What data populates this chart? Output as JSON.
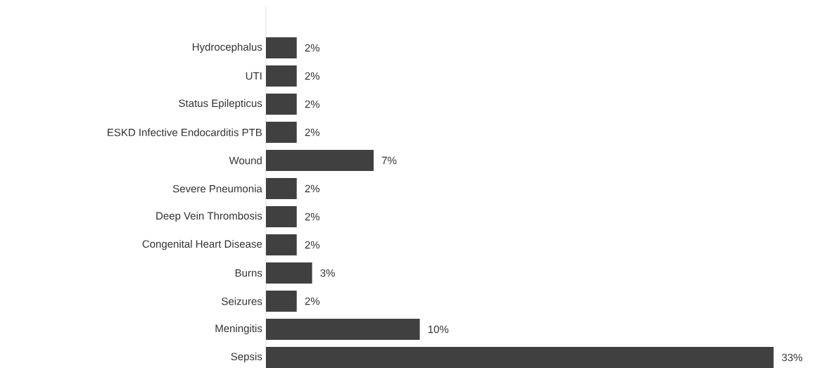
{
  "chart_data": {
    "type": "bar",
    "orientation": "horizontal",
    "categories": [
      "Hydrocephalus",
      "UTI",
      "Status Epilepticus",
      "ESKD Infective Endocarditis PTB",
      "Wound",
      "Severe Pneumonia",
      "Deep Vein Thrombosis",
      "Congenital Heart Disease",
      "Burns",
      "Seizures",
      "Meningitis",
      "Sepsis"
    ],
    "values": [
      2,
      2,
      2,
      2,
      7,
      2,
      2,
      2,
      3,
      2,
      10,
      33
    ],
    "value_labels": [
      "2%",
      "2%",
      "2%",
      "2%",
      "7%",
      "2%",
      "2%",
      "2%",
      "3%",
      "2%",
      "10%",
      "33%"
    ],
    "color": "#404040"
  }
}
